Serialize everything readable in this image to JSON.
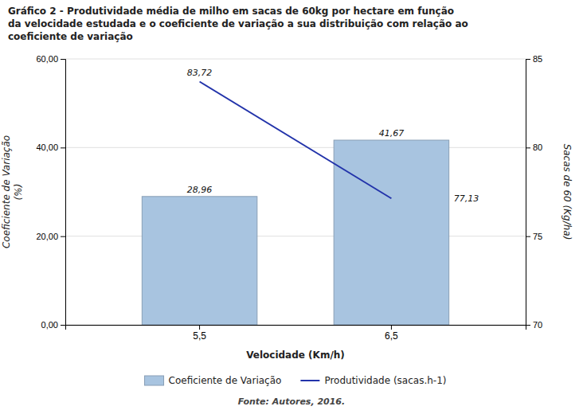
{
  "chart_data": {
    "type": "bar",
    "title": "Gráfico 2 - Produtividade média de milho em sacas de 60kg por hectare em função\nda velocidade estudada e o coeficiente de variação a sua distribuição com relação ao\ncoeficiente de variação",
    "annotations": [
      "Fonte: Autores, 2016."
    ],
    "categories": [
      "5,5",
      "6,5"
    ],
    "xlabel": "Velocidade (Km/h)",
    "ylabel": "Coeficiente de Variação\n(%)",
    "y2label": "Sacas de 60 (Kg/ha)",
    "series": [
      {
        "name": "Coeficiente de Variação",
        "type": "bar",
        "color": "#A8C4E0",
        "values": [
          28.96,
          41.67
        ],
        "value_labels": [
          "28,96",
          "41,67"
        ]
      },
      {
        "name": "Produtividade (sacas.h-1)",
        "type": "line",
        "color": "#2233AA",
        "axis": "y2",
        "values": [
          83.72,
          77.13
        ],
        "value_labels": [
          "83,72",
          "77,13"
        ]
      }
    ],
    "ylim": [
      0,
      60
    ],
    "yticks": [
      {
        "value": 0,
        "label": "0,00"
      },
      {
        "value": 20,
        "label": "20,00"
      },
      {
        "value": 40,
        "label": "40,00"
      },
      {
        "value": 60,
        "label": "60,00"
      }
    ],
    "y2lim": [
      70,
      85
    ],
    "y2ticks": [
      70,
      75,
      80,
      85
    ],
    "grid": true,
    "legend": "bottom",
    "data_labels": true
  }
}
